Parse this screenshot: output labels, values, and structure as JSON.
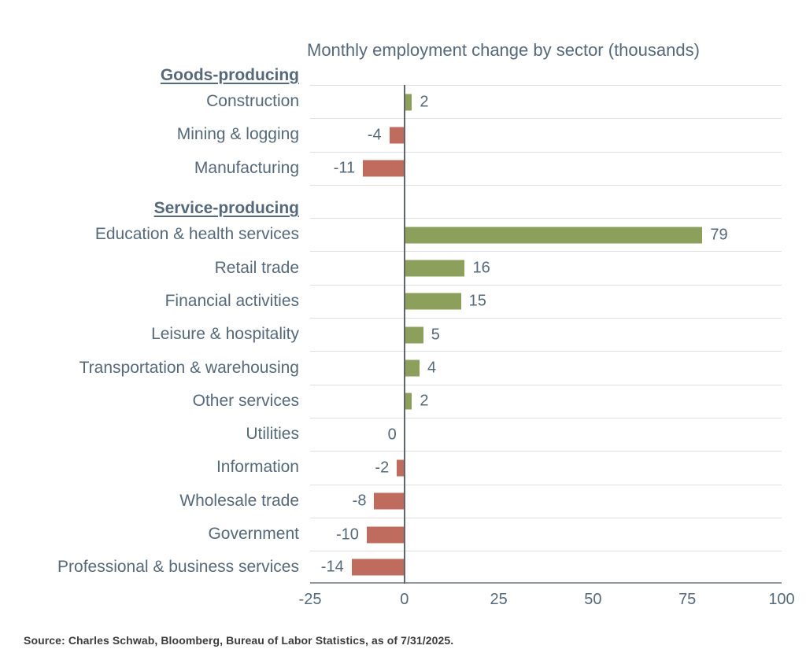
{
  "chart_data": {
    "type": "bar",
    "orientation": "horizontal",
    "title": "Monthly employment change by sector (thousands)",
    "xlabel": "",
    "ylabel": "",
    "xlim": [
      -25,
      100
    ],
    "xticks": [
      -25,
      0,
      25,
      50,
      75,
      100
    ],
    "grid": "horizontal-row-separators",
    "legend": "none",
    "groups": [
      {
        "label": "Goods-producing",
        "sectors": [
          {
            "label": "Construction",
            "value": 2
          },
          {
            "label": "Mining & logging",
            "value": -4
          },
          {
            "label": "Manufacturing",
            "value": -11
          }
        ]
      },
      {
        "label": "Service-producing",
        "sectors": [
          {
            "label": "Education & health services",
            "value": 79
          },
          {
            "label": "Retail trade",
            "value": 16
          },
          {
            "label": "Financial activities",
            "value": 15
          },
          {
            "label": "Leisure & hospitality",
            "value": 5
          },
          {
            "label": "Transportation & warehousing",
            "value": 4
          },
          {
            "label": "Other services",
            "value": 2
          },
          {
            "label": "Utilities",
            "value": 0
          },
          {
            "label": "Information",
            "value": -2
          },
          {
            "label": "Wholesale trade",
            "value": -8
          },
          {
            "label": "Government",
            "value": -10
          },
          {
            "label": "Professional & business services",
            "value": -14
          }
        ]
      }
    ],
    "colors": {
      "positive": "#8CA05C",
      "negative": "#BF6C5E",
      "text": "#56697A",
      "grid": "#E0E0E0",
      "axis": "#94999C",
      "zero_line": "#60666B",
      "source_text": "#3C3C3C",
      "background": "#FFFFFF"
    },
    "source": "Source: Charles Schwab, Bloomberg, Bureau of Labor Statistics, as of 7/31/2025."
  }
}
